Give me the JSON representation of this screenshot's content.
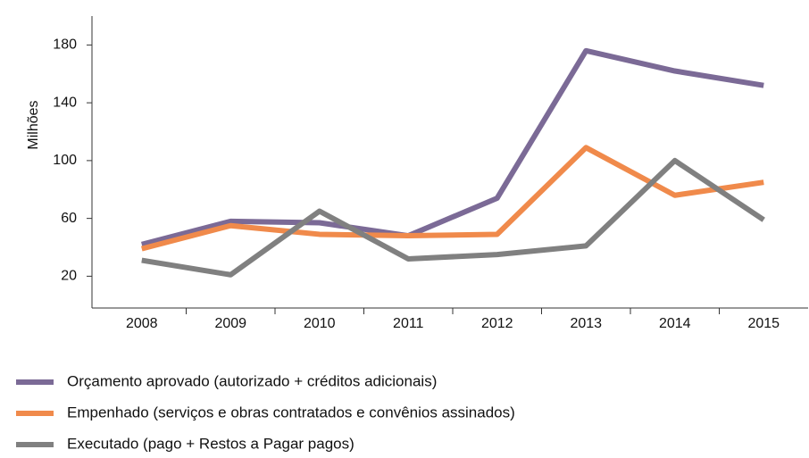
{
  "chart_data": {
    "type": "line",
    "y_label": "Milhões",
    "categories": [
      "2008",
      "2009",
      "2010",
      "2011",
      "2012",
      "2013",
      "2014",
      "2015"
    ],
    "series": [
      {
        "name": "Orçamento aprovado (autorizado + créditos adicionais)",
        "color": "#7b6a96",
        "values": [
          42,
          58,
          57,
          48,
          74,
          176,
          162,
          152
        ]
      },
      {
        "name": "Empenhado (serviços e obras contratados e convênios assinados)",
        "color": "#f08a4b",
        "values": [
          39,
          55,
          49,
          48,
          49,
          109,
          76,
          85
        ]
      },
      {
        "name": "Executado (pago + Restos a Pagar pagos)",
        "color": "#808080",
        "values": [
          31,
          21,
          65,
          32,
          35,
          41,
          100,
          59
        ]
      }
    ],
    "ylim": [
      -2,
      200
    ],
    "yticks": [
      20,
      60,
      100,
      140,
      180
    ],
    "grid": false,
    "legend": "bottom"
  }
}
